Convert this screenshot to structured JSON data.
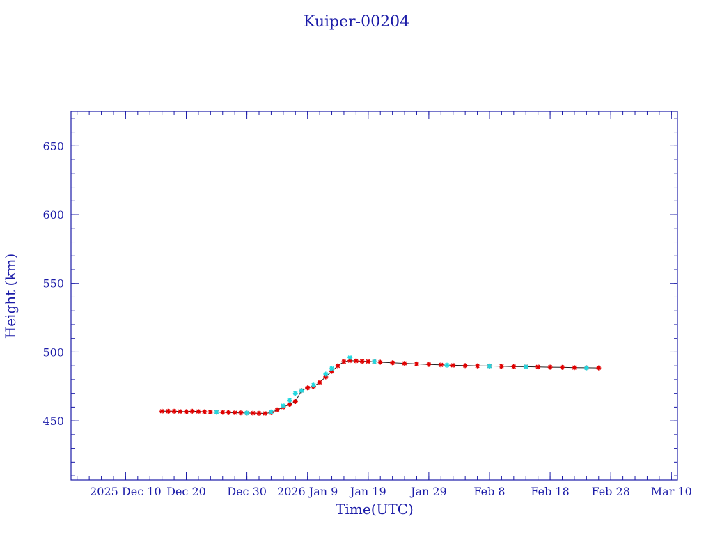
{
  "chart_data": {
    "type": "scatter",
    "title": "Kuiper-00204",
    "xlabel": "Time(UTC)",
    "ylabel": "Height (km)",
    "x_scale": "date",
    "xlim": [
      "2025-12-01",
      "2026-03-11"
    ],
    "ylim": [
      407,
      675
    ],
    "x_ticks": [
      {
        "date": "2025-12-10",
        "label": "2025 Dec 10"
      },
      {
        "date": "2025-12-20",
        "label": "Dec 20"
      },
      {
        "date": "2025-12-30",
        "label": "Dec 30"
      },
      {
        "date": "2026-01-09",
        "label": "2026 Jan  9"
      },
      {
        "date": "2026-01-19",
        "label": "Jan 19"
      },
      {
        "date": "2026-01-29",
        "label": "Jan 29"
      },
      {
        "date": "2026-02-08",
        "label": "Feb  8"
      },
      {
        "date": "2026-02-18",
        "label": "Feb 18"
      },
      {
        "date": "2026-02-28",
        "label": "Feb 28"
      },
      {
        "date": "2026-03-10",
        "label": "Mar 10"
      }
    ],
    "y_ticks": [
      450,
      500,
      550,
      600,
      650
    ],
    "grid": false,
    "colors": {
      "axis": "#1c1ca8",
      "primary": "#e00000",
      "secondary": "#22d8e0",
      "line": "#202020"
    },
    "series": [
      {
        "color": "#e00000",
        "x": [
          "2025-12-16",
          "2025-12-17",
          "2025-12-18",
          "2025-12-19",
          "2025-12-20",
          "2025-12-21",
          "2025-12-22",
          "2025-12-23",
          "2025-12-24",
          "2025-12-25",
          "2025-12-26",
          "2025-12-27",
          "2025-12-28",
          "2025-12-29",
          "2025-12-30",
          "2025-12-31",
          "2026-01-01",
          "2026-01-02",
          "2026-01-03",
          "2026-01-04",
          "2026-01-05",
          "2026-01-06",
          "2026-01-07",
          "2026-01-08",
          "2026-01-09",
          "2026-01-10",
          "2026-01-11",
          "2026-01-12",
          "2026-01-13",
          "2026-01-14",
          "2026-01-15",
          "2026-01-16",
          "2026-01-17",
          "2026-01-18",
          "2026-01-19",
          "2026-01-20",
          "2026-01-21",
          "2026-01-23",
          "2026-01-25",
          "2026-01-27",
          "2026-01-29",
          "2026-01-31",
          "2026-02-02",
          "2026-02-04",
          "2026-02-06",
          "2026-02-08",
          "2026-02-10",
          "2026-02-12",
          "2026-02-14",
          "2026-02-16",
          "2026-02-18",
          "2026-02-20",
          "2026-02-22",
          "2026-02-24",
          "2026-02-26"
        ],
        "y": [
          457,
          457,
          457,
          456.8,
          456.7,
          457,
          456.8,
          456.6,
          456.4,
          456.3,
          456.2,
          456,
          455.9,
          455.8,
          455.7,
          455.6,
          455.5,
          455.4,
          456,
          458,
          460,
          462,
          464,
          472,
          474,
          475,
          478,
          482,
          486,
          490,
          493,
          493.8,
          493.6,
          493.4,
          493.2,
          493,
          492.6,
          492.2,
          491.8,
          491.4,
          491,
          490.7,
          490.4,
          490.2,
          490,
          489.9,
          489.7,
          489.5,
          489.4,
          489.2,
          489,
          488.9,
          488.7,
          488.6,
          488.5
        ]
      },
      {
        "color": "#22d8e0",
        "x": [
          "2025-12-25",
          "2025-12-30",
          "2026-01-03",
          "2026-01-05",
          "2026-01-06",
          "2026-01-07",
          "2026-01-08",
          "2026-01-10",
          "2026-01-12",
          "2026-01-13",
          "2026-01-16",
          "2026-01-20",
          "2026-02-01",
          "2026-02-08",
          "2026-02-14",
          "2026-02-24"
        ],
        "y": [
          456.3,
          455.7,
          456.5,
          461,
          465,
          470,
          472,
          476,
          484,
          488,
          496,
          493,
          490.5,
          489.8,
          489.3,
          488.5
        ]
      }
    ]
  }
}
